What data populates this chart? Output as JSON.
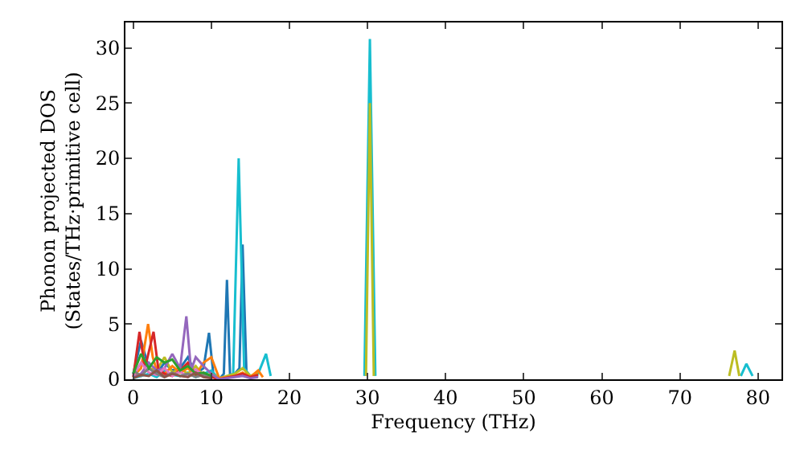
{
  "chart_data": {
    "type": "line",
    "xlabel": "Frequency (THz)",
    "ylabel": "Phonon projected DOS\n(States/THz·primitive cell)",
    "xlim": [
      -1,
      83
    ],
    "ylim": [
      0,
      32.3
    ],
    "xticks": [
      0,
      10,
      20,
      30,
      40,
      50,
      60,
      70,
      80
    ],
    "yticks": [
      0,
      5,
      10,
      15,
      20,
      25,
      30
    ],
    "marker": "none",
    "line_style": "solid",
    "series": [
      {
        "color": "#1f77b4",
        "x": [
          0,
          1,
          2,
          3,
          4,
          5,
          6,
          7,
          8,
          9,
          9.7,
          10.3,
          11,
          11.6,
          12,
          12.4,
          13,
          13.6,
          14,
          14.5,
          15,
          16
        ],
        "values": [
          0.5,
          3.5,
          1,
          0.5,
          1.5,
          0.8,
          1,
          2,
          0.5,
          1,
          4.2,
          0.2,
          0,
          0.5,
          9,
          0.3,
          0.5,
          1,
          12.2,
          0.5,
          0.2,
          0.3
        ]
      },
      {
        "color": "#17becf",
        "x": [
          0,
          1,
          2,
          3,
          4,
          5,
          6,
          7,
          8,
          9,
          10,
          11,
          12.8,
          13.5,
          14.2,
          15,
          16,
          17,
          17.6,
          24,
          29.6,
          30.3,
          31,
          50,
          77.8,
          78.5,
          79.3
        ],
        "values": [
          0.1,
          0.3,
          0.5,
          0.2,
          0.8,
          0.4,
          0.3,
          0.6,
          0.2,
          0.5,
          0.8,
          0,
          0.5,
          20,
          1,
          0.3,
          0.5,
          2.3,
          0.3,
          null,
          0.3,
          30.8,
          0.3,
          null,
          0.3,
          1.4,
          0.3
        ]
      },
      {
        "color": "#bcbd22",
        "x": [
          0,
          1,
          2,
          3,
          4,
          5,
          6,
          7,
          8,
          9,
          10,
          11,
          13,
          14,
          15,
          16,
          24,
          29.8,
          30.3,
          30.8,
          50,
          76.3,
          77,
          77.6
        ],
        "values": [
          0.2,
          0.5,
          1,
          0.8,
          2,
          0.6,
          1,
          0.5,
          1.2,
          0.3,
          0.5,
          0.1,
          0.5,
          1,
          0.3,
          0.6,
          null,
          0.3,
          25,
          0.3,
          null,
          0.3,
          2.6,
          0.3
        ]
      },
      {
        "color": "#ff7f0e",
        "x": [
          0,
          1,
          1.9,
          2.5,
          3,
          4,
          5,
          6,
          7,
          8,
          9,
          10,
          11,
          13,
          14,
          15,
          16,
          16.6
        ],
        "values": [
          0.3,
          1,
          5,
          2,
          0.8,
          0.5,
          1.2,
          0.6,
          1,
          0.4,
          1.5,
          2,
          0.1,
          0.3,
          0.6,
          0.2,
          0.8,
          0.2
        ]
      },
      {
        "color": "#d62728",
        "x": [
          0,
          0.8,
          1.5,
          2.6,
          3.2,
          4,
          5,
          6,
          7,
          8,
          9,
          10,
          11,
          13,
          14,
          15,
          16
        ],
        "values": [
          0.2,
          4.3,
          1,
          4.3,
          1,
          0.5,
          0.3,
          0.8,
          1.5,
          0.4,
          0.6,
          0.2,
          0,
          0.3,
          0.5,
          0.2,
          0.4
        ]
      },
      {
        "color": "#9467bd",
        "x": [
          0,
          1,
          2,
          3,
          4,
          5,
          6,
          6.8,
          7.4,
          8,
          9,
          10,
          11,
          13,
          14,
          15,
          16
        ],
        "values": [
          0.2,
          0.5,
          1.5,
          0.8,
          1,
          2.3,
          1,
          5.7,
          0.8,
          2,
          1.2,
          0.5,
          0,
          0.2,
          0.3,
          0.1,
          0.2
        ]
      },
      {
        "color": "#e377c2",
        "x": [
          0,
          1,
          2,
          3,
          4,
          5,
          6,
          7,
          8,
          9,
          10
        ],
        "values": [
          0.3,
          1.5,
          0.6,
          0.4,
          1,
          0.3,
          0.7,
          0.2,
          0.9,
          0.3,
          0.1
        ]
      },
      {
        "color": "#7f7f7f",
        "x": [
          0,
          1,
          2,
          3,
          4,
          5,
          6,
          7,
          8,
          9,
          10
        ],
        "values": [
          0.8,
          0.3,
          1,
          0.5,
          0.2,
          0.6,
          0.3,
          0.5,
          0.2,
          0.4,
          0.1
        ]
      },
      {
        "color": "#2ca02c",
        "x": [
          0,
          1,
          2,
          3,
          4,
          5,
          6,
          7,
          8,
          9,
          10
        ],
        "values": [
          0.5,
          2.3,
          1,
          2,
          1.5,
          1.8,
          0.8,
          1.2,
          0.5,
          0.6,
          0.3
        ]
      },
      {
        "color": "#8c564b",
        "x": [
          0,
          1,
          2,
          3,
          4,
          5,
          6,
          7,
          8,
          9,
          10
        ],
        "values": [
          0.1,
          0.4,
          0.3,
          0.8,
          0.2,
          0.5,
          0.3,
          0.2,
          0.6,
          0.2,
          0.1
        ]
      }
    ]
  }
}
